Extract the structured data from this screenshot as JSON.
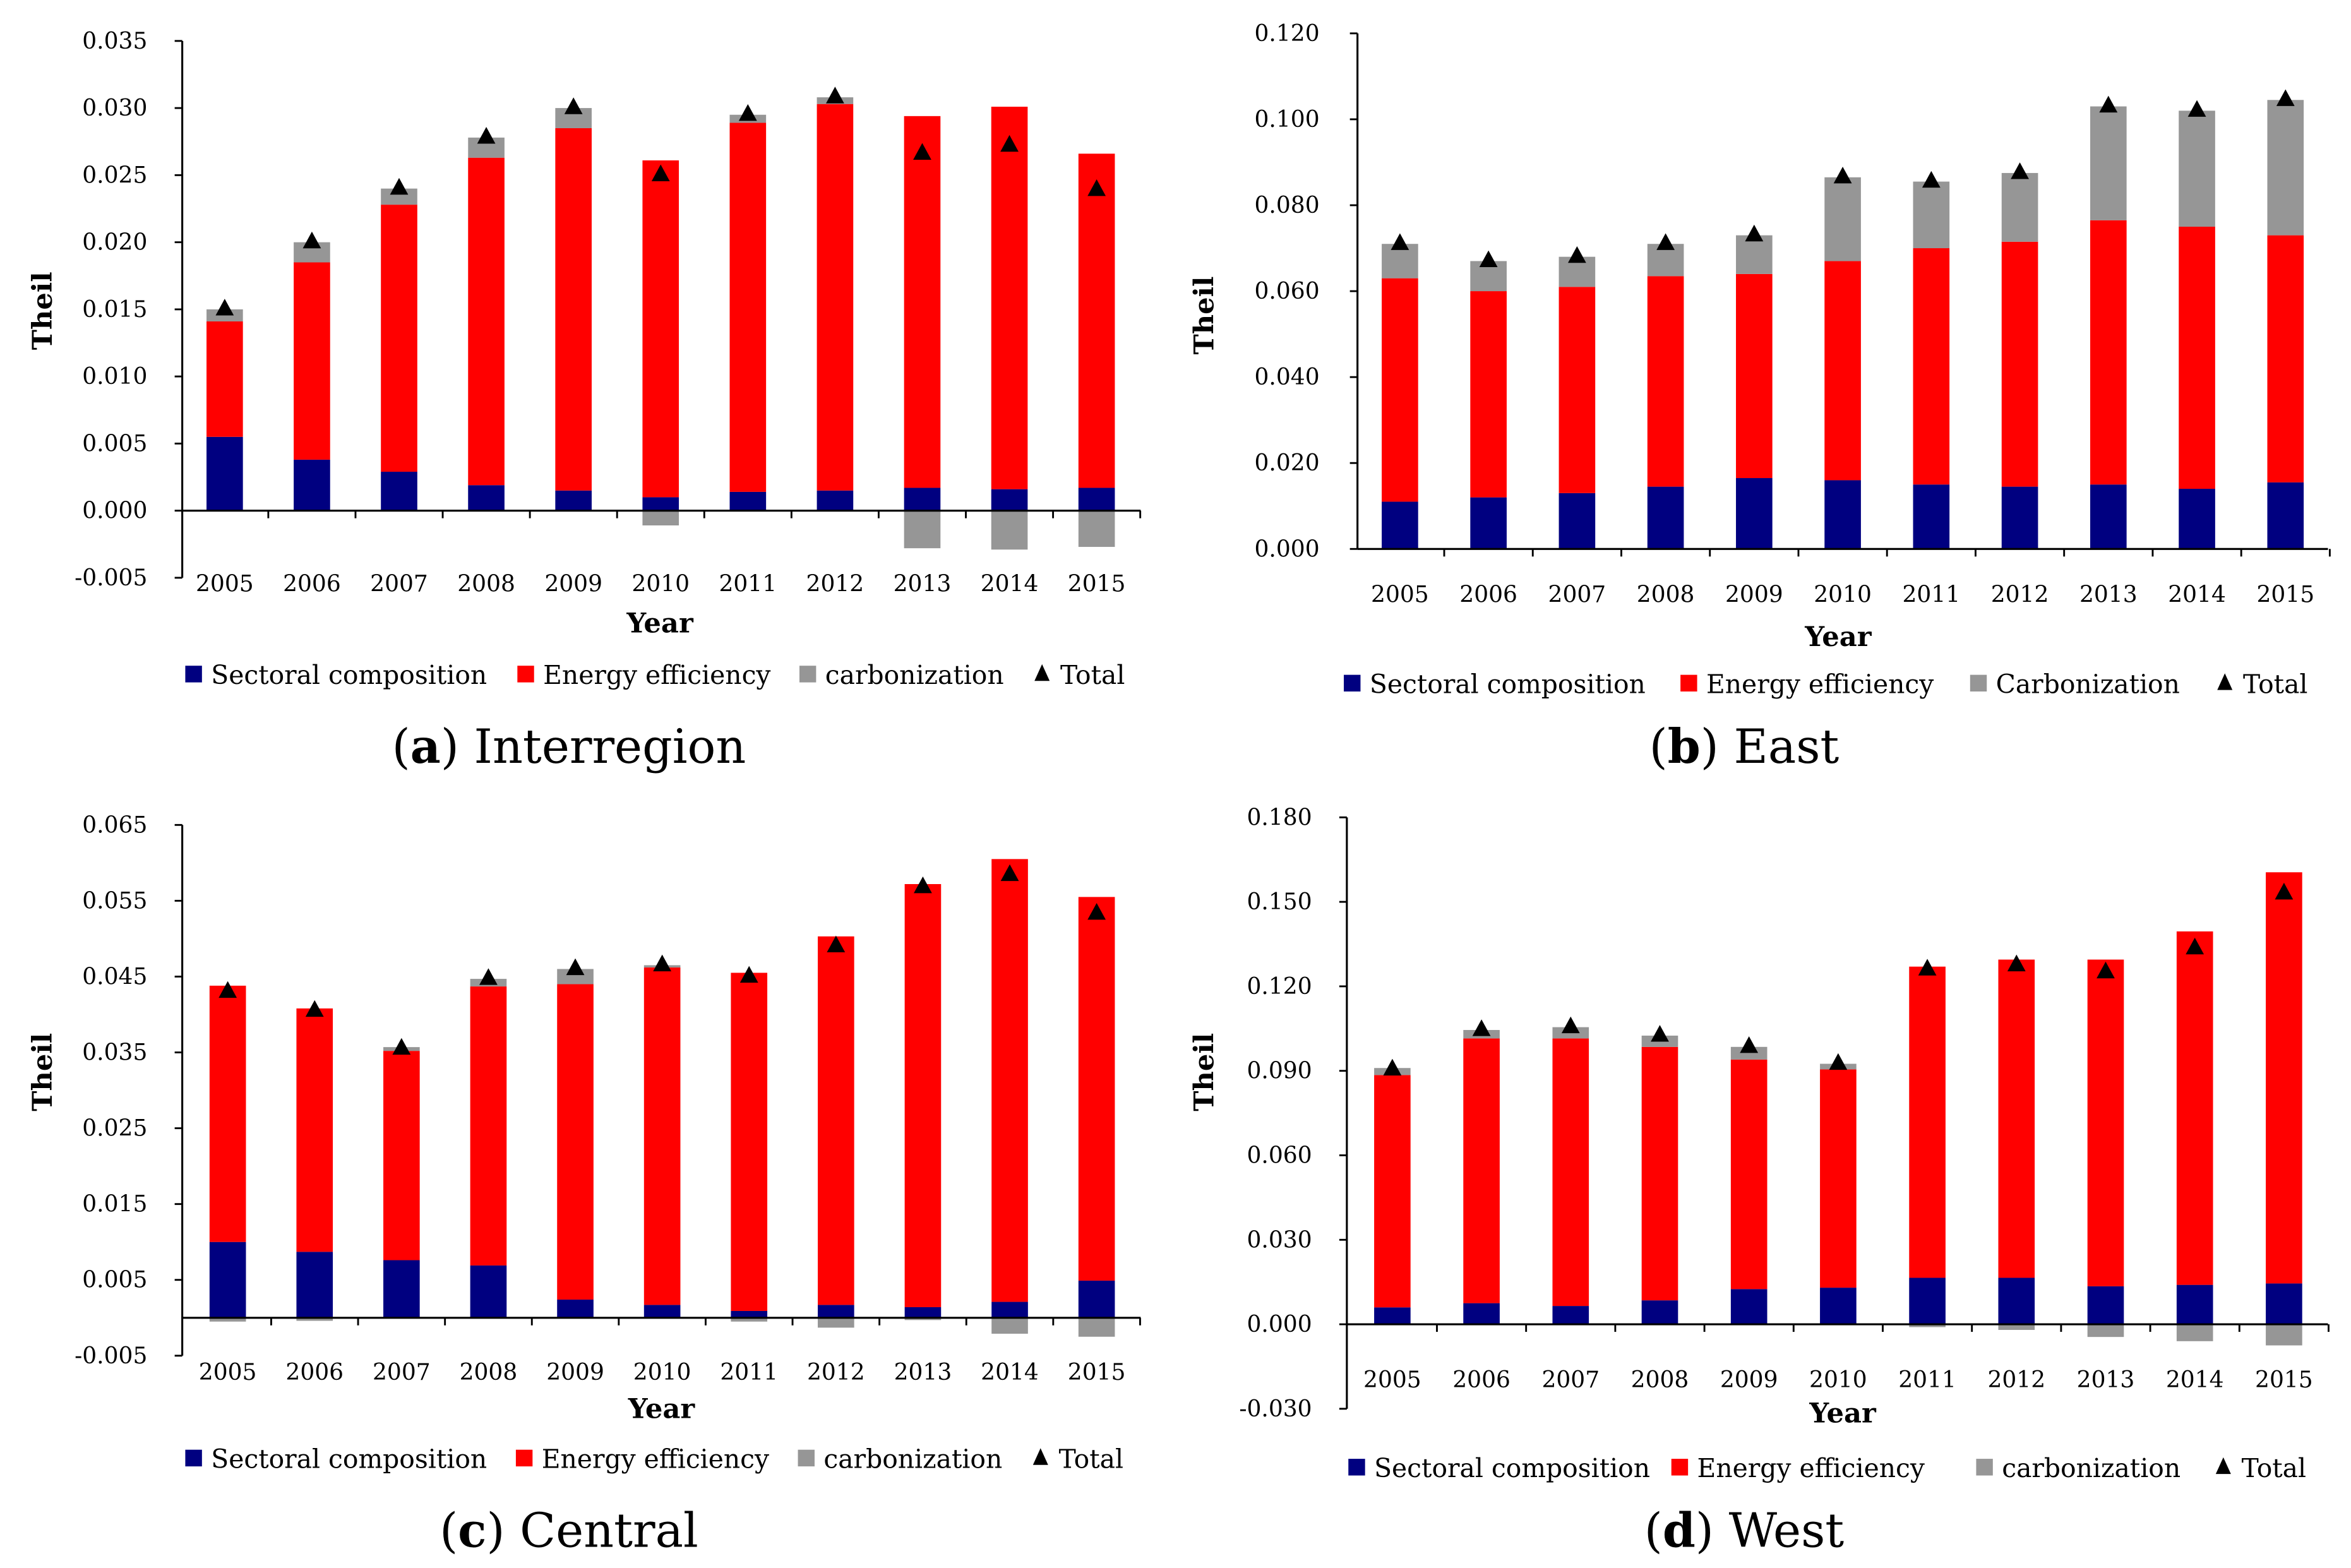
{
  "colors": {
    "sectoral": "#000080",
    "energy": "#ff0000",
    "carbonization": "#969696",
    "total": "#000000"
  },
  "chart_data": [
    {
      "type": "bar",
      "stacked": true,
      "caption_letter": "a",
      "caption_title": "Interregion",
      "xlabel": "Year",
      "ylabel": "Theil",
      "ylim": [
        -0.005,
        0.035
      ],
      "yticks": [
        "-0.005",
        "0.000",
        "0.005",
        "0.010",
        "0.015",
        "0.020",
        "0.025",
        "0.030",
        "0.035"
      ],
      "categories": [
        "2005",
        "2006",
        "2007",
        "2008",
        "2009",
        "2010",
        "2011",
        "2012",
        "2013",
        "2014",
        "2015"
      ],
      "legend": [
        "Sectoral composition",
        "Energy efficiency",
        "carbonization",
        "Total"
      ],
      "legend_position": "bottom",
      "series": [
        {
          "name": "Sectoral composition",
          "values": [
            0.0055,
            0.0038,
            0.0029,
            0.0019,
            0.0015,
            0.001,
            0.0014,
            0.0015,
            0.0017,
            0.0016,
            0.0017
          ]
        },
        {
          "name": "Energy efficiency",
          "values": [
            0.0086,
            0.0147,
            0.0199,
            0.0244,
            0.027,
            0.0251,
            0.0275,
            0.0288,
            0.0277,
            0.0285,
            0.0249
          ]
        },
        {
          "name": "carbonization",
          "values": [
            0.0009,
            0.0015,
            0.0012,
            0.0015,
            0.0015,
            -0.0011,
            0.0006,
            0.0005,
            -0.0028,
            -0.0029,
            -0.0027
          ]
        },
        {
          "name": "Total",
          "values": [
            0.015,
            0.02,
            0.024,
            0.0278,
            0.03,
            0.025,
            0.0295,
            0.0308,
            0.0266,
            0.0272,
            0.0239
          ]
        }
      ]
    },
    {
      "type": "bar",
      "stacked": true,
      "caption_letter": "b",
      "caption_title": "East",
      "xlabel": "Year",
      "ylabel": "Theil",
      "ylim": [
        0,
        0.12
      ],
      "yticks": [
        "0.000",
        "0.020",
        "0.040",
        "0.060",
        "0.080",
        "0.100",
        "0.120"
      ],
      "categories": [
        "2005",
        "2006",
        "2007",
        "2008",
        "2009",
        "2010",
        "2011",
        "2012",
        "2013",
        "2014",
        "2015"
      ],
      "legend": [
        "Sectoral composition",
        "Energy efficiency",
        "Carbonization",
        "Total"
      ],
      "legend_position": "bottom",
      "series": [
        {
          "name": "Sectoral composition",
          "values": [
            0.011,
            0.012,
            0.013,
            0.0145,
            0.0165,
            0.016,
            0.015,
            0.0145,
            0.015,
            0.014,
            0.0155
          ]
        },
        {
          "name": "Energy efficiency",
          "values": [
            0.052,
            0.048,
            0.048,
            0.049,
            0.0475,
            0.051,
            0.055,
            0.057,
            0.0615,
            0.061,
            0.0575
          ]
        },
        {
          "name": "Carbonization",
          "values": [
            0.008,
            0.007,
            0.007,
            0.0075,
            0.009,
            0.0195,
            0.0155,
            0.016,
            0.0265,
            0.027,
            0.0315
          ]
        },
        {
          "name": "Total",
          "values": [
            0.071,
            0.067,
            0.068,
            0.071,
            0.073,
            0.0865,
            0.0855,
            0.0875,
            0.103,
            0.102,
            0.1045
          ]
        }
      ]
    },
    {
      "type": "bar",
      "stacked": true,
      "caption_letter": "c",
      "caption_title": "Central",
      "xlabel": "Year",
      "ylabel": "Theil",
      "ylim": [
        -0.005,
        0.065
      ],
      "yticks": [
        "-0.005",
        "0.005",
        "0.015",
        "0.025",
        "0.035",
        "0.045",
        "0.055",
        "0.065"
      ],
      "categories": [
        "2005",
        "2006",
        "2007",
        "2008",
        "2009",
        "2010",
        "2011",
        "2012",
        "2013",
        "2014",
        "2015"
      ],
      "legend": [
        "Sectoral composition",
        "Energy efficiency",
        "carbonization",
        "Total"
      ],
      "legend_position": "bottom",
      "series": [
        {
          "name": "Sectoral composition",
          "values": [
            0.01,
            0.0087,
            0.0076,
            0.0069,
            0.0024,
            0.0017,
            0.0009,
            0.0017,
            0.0014,
            0.0021,
            0.0049
          ]
        },
        {
          "name": "Energy efficiency",
          "values": [
            0.0338,
            0.0321,
            0.0276,
            0.0368,
            0.0416,
            0.0445,
            0.0446,
            0.0486,
            0.0558,
            0.0584,
            0.0506
          ]
        },
        {
          "name": "carbonization",
          "values": [
            -0.0005,
            -0.0004,
            0.0005,
            0.001,
            0.002,
            0.0003,
            -0.0005,
            -0.0013,
            -0.0003,
            -0.0021,
            -0.0025
          ]
        },
        {
          "name": "Total",
          "values": [
            0.043,
            0.0405,
            0.0355,
            0.0447,
            0.046,
            0.0465,
            0.045,
            0.049,
            0.0568,
            0.0584,
            0.0533
          ]
        }
      ]
    },
    {
      "type": "bar",
      "stacked": true,
      "caption_letter": "d",
      "caption_title": "West",
      "xlabel": "Year",
      "ylabel": "Theil",
      "ylim": [
        -0.03,
        0.18
      ],
      "yticks": [
        "-0.030",
        "0.000",
        "0.030",
        "0.060",
        "0.090",
        "0.120",
        "0.150",
        "0.180"
      ],
      "categories": [
        "2005",
        "2006",
        "2007",
        "2008",
        "2009",
        "2010",
        "2011",
        "2012",
        "2013",
        "2014",
        "2015"
      ],
      "legend": [
        "Sectoral composition",
        "Energy efficiency",
        "carbonization",
        "Total"
      ],
      "legend_position": "bottom",
      "series": [
        {
          "name": "Sectoral composition",
          "values": [
            0.006,
            0.0075,
            0.0065,
            0.0085,
            0.0125,
            0.013,
            0.0165,
            0.0165,
            0.0135,
            0.014,
            0.0145
          ]
        },
        {
          "name": "Energy efficiency",
          "values": [
            0.0825,
            0.094,
            0.095,
            0.09,
            0.0815,
            0.0775,
            0.1105,
            0.113,
            0.116,
            0.1255,
            0.146
          ]
        },
        {
          "name": "carbonization",
          "values": [
            0.0025,
            0.003,
            0.004,
            0.004,
            0.0045,
            0.002,
            -0.001,
            -0.002,
            -0.0045,
            -0.006,
            -0.0075
          ]
        },
        {
          "name": "Total",
          "values": [
            0.0905,
            0.1045,
            0.1055,
            0.1025,
            0.0985,
            0.0925,
            0.126,
            0.1275,
            0.125,
            0.1335,
            0.153
          ]
        }
      ]
    }
  ]
}
